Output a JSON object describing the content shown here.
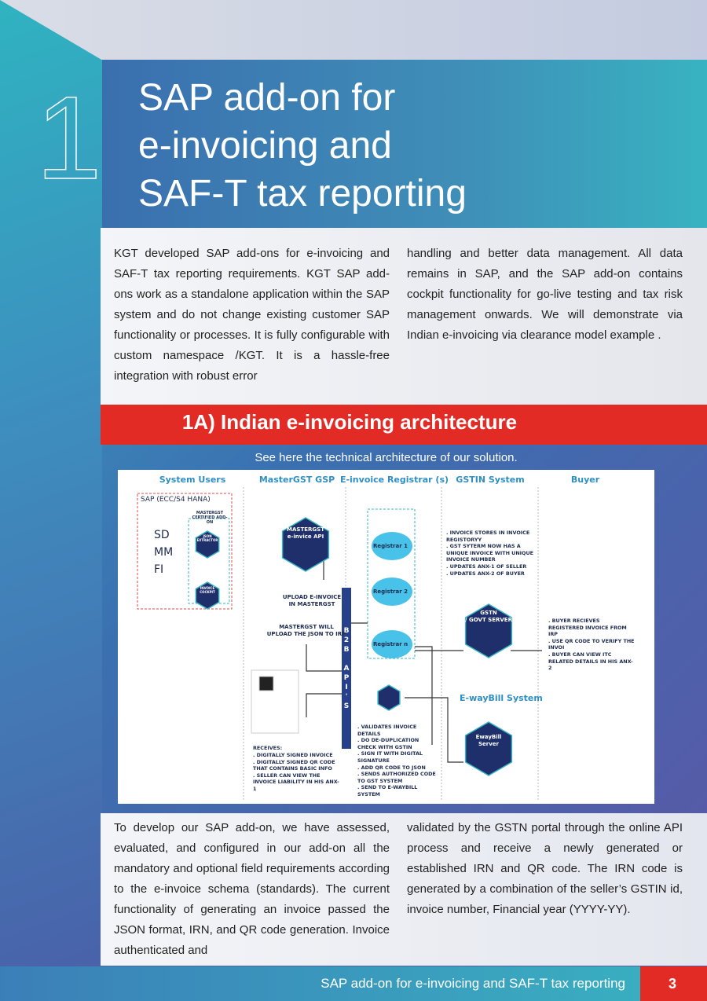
{
  "header": {
    "number": "1",
    "title": [
      "SAP add-on for",
      "e-invoicing and",
      "SAF-T tax reporting"
    ]
  },
  "intro": {
    "columns": [
      "KGT developed SAP add-ons for e-invoicing and SAF-T tax reporting requirements. KGT SAP add-ons work as a standalone application within the SAP system and do not change existing customer SAP functionality or processes. It is fully configurable with custom namespace /KGT. It is a hassle-free integration with robust error",
      "handling and better data management. All data remains in SAP, and the SAP add-on contains cockpit functionality for go-live testing and tax risk management onwards. We will demonstrate via Indian e-invoicing via clearance model example ."
    ]
  },
  "section": {
    "heading": "1A) Indian e-invoicing architecture",
    "caption": "See here the technical architecture of our solution."
  },
  "diagram": {
    "columns": [
      "System Users",
      "MasterGST GSP",
      "E-invoice Registrar (s)",
      "GSTIN System",
      "Buyer"
    ],
    "sap_box": "SAP (ECC/S4 HANA)",
    "modules": [
      "SD",
      "MM",
      "FI"
    ],
    "addon_label": "MASTERGST CERTIFIED ADD-ON",
    "json_extractor": "JSON EXTRACTOR",
    "invoice_cockpit": "INVOICE COCKPIT",
    "mastergst_api": [
      "MASTERGST",
      "e-invice API"
    ],
    "upload_note": [
      "UPLOAD E-INVOICE",
      "IN MASTERGST"
    ],
    "irp_note": [
      "MASTERGST WILL",
      "UPLOAD THE JSON TO IRP"
    ],
    "api_bar": "B2B API'S",
    "registrars": [
      "Registrar 1",
      "Registrar 2",
      "Registrar n"
    ],
    "gstin_notes": [
      ". INVOICE STORES IN INVOICE REGISTORYY",
      ". GST SYTERM NOW HAS A UNIQUE INVOICE WITH UNIQUE INVOICE NUMBER",
      ". UPDATES ANX-1 OF SELLER",
      ". UPDATES ANX-2 OF BUYER"
    ],
    "gstn_server": [
      "GSTN",
      "/ GOVT SERVER"
    ],
    "buyer_notes": [
      ". BUYER RECIEVES REGISTERED INVOICE FROM IRP",
      ". USE QR CODE TO VERIFY THE INVOI",
      ". BUYER CAN VIEW ITC RELATED DETAILS IN HIS ANX-2"
    ],
    "eway_title": "E-wayBill System",
    "eway_server": [
      "EwayBill",
      "Server"
    ],
    "irp_steps": [
      ". VALIDATES INVOICE DETAILS",
      ". DO DE-DUPLICATION CHECK WITH GSTIN",
      ". SIGN IT WITH DIGITAL SIGNATURE",
      ". ADD QR CODE TO JSON",
      ". SENDS AUTHORIZED CODE TO GST SYSTEM",
      ". SEND TO E-WAYBILL SYSTEM"
    ],
    "receives_title": "RECEIVES:",
    "receives": [
      ". DIGITALLY SIGNED INVOICE",
      ". DIGITALLY SIGNED QR CODE THAT CONTAINS BASIC INFO",
      ". SELLER CAN VIEW THE INVOICE LIABILITY IN HIS ANX-1"
    ]
  },
  "body": {
    "columns": [
      "To develop our SAP add-on, we have assessed, evaluated, and configured in our add-on all the mandatory and optional field requirements according to the e-invoice schema (standards). The current functionality of generating an invoice passed the JSON format, IRN, and QR code generation. Invoice authenticated and",
      "validated by the GSTN portal through the online API process and receive a newly generated or established IRN and QR code. The IRN code is generated by a combination of the seller’s GSTIN id, invoice number, Financial year (YYYY-YY)."
    ]
  },
  "footer": {
    "title": "SAP add-on for e-invoicing and SAF-T tax reporting",
    "page": "3"
  }
}
